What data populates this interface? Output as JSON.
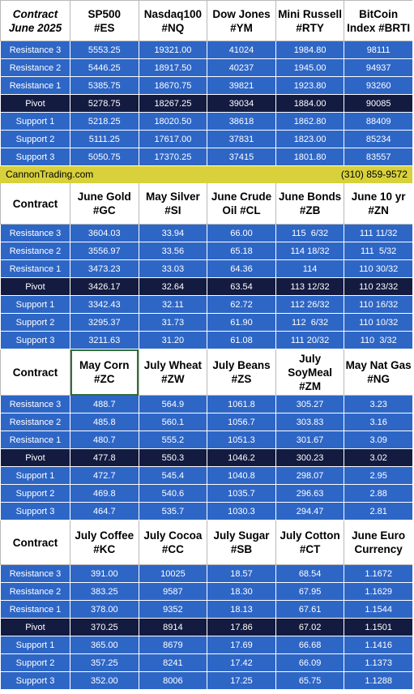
{
  "contact": {
    "site": "CannonTrading.com",
    "phone": "(310) 859-9572"
  },
  "sections": [
    {
      "header": [
        "Contract\nJune 2025",
        "SP500\n#ES",
        "Nasdaq100\n#NQ",
        "Dow Jones\n#YM",
        "Mini Russell\n#RTY",
        "BitCoin\nIndex #BRTI"
      ],
      "header_italic": true,
      "rows": [
        {
          "label": "Resistance 3",
          "values": [
            "5553.25",
            "19321.00",
            "41024",
            "1984.80",
            "98111"
          ]
        },
        {
          "label": "Resistance 2",
          "values": [
            "5446.25",
            "18917.50",
            "40237",
            "1945.00",
            "94937"
          ]
        },
        {
          "label": "Resistance 1",
          "values": [
            "5385.75",
            "18670.75",
            "39821",
            "1923.80",
            "93260"
          ]
        },
        {
          "label": "Pivot",
          "values": [
            "5278.75",
            "18267.25",
            "39034",
            "1884.00",
            "90085"
          ]
        },
        {
          "label": "Support 1",
          "values": [
            "5218.25",
            "18020.50",
            "38618",
            "1862.80",
            "88409"
          ]
        },
        {
          "label": "Support 2",
          "values": [
            "5111.25",
            "17617.00",
            "37831",
            "1823.00",
            "85234"
          ]
        },
        {
          "label": "Support 3",
          "values": [
            "5050.75",
            "17370.25",
            "37415",
            "1801.80",
            "83557"
          ]
        }
      ]
    },
    {
      "header": [
        "Contract",
        "June Gold\n#GC",
        "May Silver\n#SI",
        "June Crude\nOil #CL",
        "June Bonds\n#ZB",
        "June 10 yr\n#ZN"
      ],
      "header_italic": false,
      "rows": [
        {
          "label": "Resistance 3",
          "values": [
            "3604.03",
            "33.94",
            "66.00",
            "115  6/32",
            "111 11/32"
          ]
        },
        {
          "label": "Resistance 2",
          "values": [
            "3556.97",
            "33.56",
            "65.18",
            "114 18/32",
            "111  5/32"
          ]
        },
        {
          "label": "Resistance 1",
          "values": [
            "3473.23",
            "33.03",
            "64.36",
            "114",
            "110 30/32"
          ]
        },
        {
          "label": "Pivot",
          "values": [
            "3426.17",
            "32.64",
            "63.54",
            "113 12/32",
            "110 23/32"
          ]
        },
        {
          "label": "Support 1",
          "values": [
            "3342.43",
            "32.11",
            "62.72",
            "112 26/32",
            "110 16/32"
          ]
        },
        {
          "label": "Support 2",
          "values": [
            "3295.37",
            "31.73",
            "61.90",
            "112  6/32",
            "110 10/32"
          ]
        },
        {
          "label": "Support 3",
          "values": [
            "3211.63",
            "31.20",
            "61.08",
            "111 20/32",
            "110  3/32"
          ]
        }
      ]
    },
    {
      "header": [
        "Contract",
        "May Corn\n#ZC",
        "July  Wheat\n#ZW",
        "July Beans\n#ZS",
        "July\nSoyMeal\n#ZM",
        "May Nat Gas\n#NG"
      ],
      "header_italic": false,
      "rows": [
        {
          "label": "Resistance 3",
          "values": [
            "488.7",
            "564.9",
            "1061.8",
            "305.27",
            "3.23"
          ]
        },
        {
          "label": "Resistance 2",
          "values": [
            "485.8",
            "560.1",
            "1056.7",
            "303.83",
            "3.16"
          ]
        },
        {
          "label": "Resistance 1",
          "values": [
            "480.7",
            "555.2",
            "1051.3",
            "301.67",
            "3.09"
          ]
        },
        {
          "label": "Pivot",
          "values": [
            "477.8",
            "550.3",
            "1046.2",
            "300.23",
            "3.02"
          ]
        },
        {
          "label": "Support 1",
          "values": [
            "472.7",
            "545.4",
            "1040.8",
            "298.07",
            "2.95"
          ]
        },
        {
          "label": "Support 2",
          "values": [
            "469.8",
            "540.6",
            "1035.7",
            "296.63",
            "2.88"
          ]
        },
        {
          "label": "Support 3",
          "values": [
            "464.7",
            "535.7",
            "1030.3",
            "294.47",
            "2.81"
          ]
        }
      ]
    },
    {
      "header": [
        "Contract",
        "July Coffee\n#KC",
        "July Cocoa\n#CC",
        "July Sugar\n#SB",
        "July Cotton\n#CT",
        "June Euro\nCurrency"
      ],
      "header_italic": false,
      "rows": [
        {
          "label": "Resistance 3",
          "values": [
            "391.00",
            "10025",
            "18.57",
            "68.54",
            "1.1672"
          ]
        },
        {
          "label": "Resistance 2",
          "values": [
            "383.25",
            "9587",
            "18.30",
            "67.95",
            "1.1629"
          ]
        },
        {
          "label": "Resistance 1",
          "values": [
            "378.00",
            "9352",
            "18.13",
            "67.61",
            "1.1544"
          ]
        },
        {
          "label": "Pivot",
          "values": [
            "370.25",
            "8914",
            "17.86",
            "67.02",
            "1.1501"
          ]
        },
        {
          "label": "Support 1",
          "values": [
            "365.00",
            "8679",
            "17.69",
            "66.68",
            "1.1416"
          ]
        },
        {
          "label": "Support 2",
          "values": [
            "357.25",
            "8241",
            "17.42",
            "66.09",
            "1.1373"
          ]
        },
        {
          "label": "Support 3",
          "values": [
            "352.00",
            "8006",
            "17.25",
            "65.75",
            "1.1288"
          ]
        }
      ]
    }
  ],
  "selection": {
    "section": 2,
    "column": 1
  },
  "colors": {
    "row": "#2e66c6",
    "pivot": "#141b40",
    "band": "#d8d13c",
    "header": "#ffffff",
    "selection_border": "#2f6f3a"
  }
}
